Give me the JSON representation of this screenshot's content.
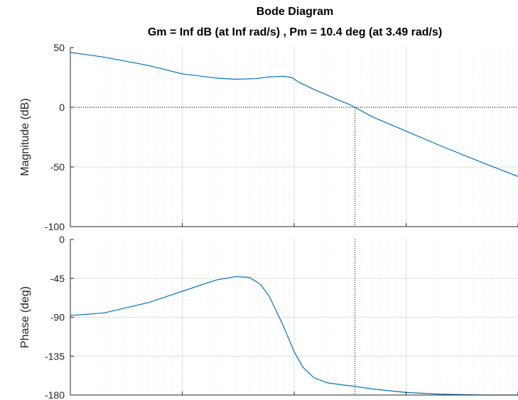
{
  "figure": {
    "title": "Bode Diagram",
    "subtitle": "Gm = Inf dB (at Inf rad/s) ,  Pm = 10.4 deg (at 3.49 rad/s)"
  },
  "chart_data": [
    {
      "type": "line",
      "panel": "magnitude",
      "ylabel": "Magnitude (dB)",
      "xscale": "log",
      "xlim": [
        0.01,
        100
      ],
      "ylim": [
        -100,
        50
      ],
      "yticks": [
        50,
        0,
        -50,
        -100
      ],
      "grid": true,
      "reference_line": 0,
      "crossover_frequency": 3.49,
      "series": [
        {
          "color": "#0072BD",
          "x": [
            0.01,
            0.02,
            0.05,
            0.1,
            0.2,
            0.3,
            0.45,
            0.6,
            0.8,
            0.95,
            1.1,
            1.5,
            2.0,
            2.5,
            3.0,
            3.49,
            5,
            10,
            20,
            50,
            100
          ],
          "y": [
            46,
            42,
            35,
            28,
            24.5,
            23.5,
            24,
            25.5,
            26,
            25,
            21,
            15,
            10,
            6,
            3,
            0,
            -8,
            -20,
            -32,
            -47,
            -58
          ]
        }
      ]
    },
    {
      "type": "line",
      "panel": "phase",
      "ylabel": "Phase (deg)",
      "xscale": "log",
      "xlim": [
        0.01,
        100
      ],
      "ylim": [
        -180,
        0
      ],
      "yticks": [
        0,
        -45,
        -90,
        -135,
        -180
      ],
      "grid": true,
      "reference_line": -180,
      "crossover_frequency": 3.49,
      "series": [
        {
          "color": "#0072BD",
          "x": [
            0.01,
            0.02,
            0.05,
            0.1,
            0.2,
            0.3,
            0.4,
            0.5,
            0.6,
            0.8,
            1.0,
            1.2,
            1.5,
            2,
            3,
            3.49,
            5,
            10,
            20,
            50,
            100
          ],
          "y": [
            -88,
            -85,
            -73,
            -60,
            -47,
            -43,
            -44,
            -52,
            -66,
            -100,
            -130,
            -148,
            -160,
            -166,
            -169,
            -170,
            -173,
            -177,
            -179,
            -180,
            -180
          ]
        }
      ]
    }
  ]
}
